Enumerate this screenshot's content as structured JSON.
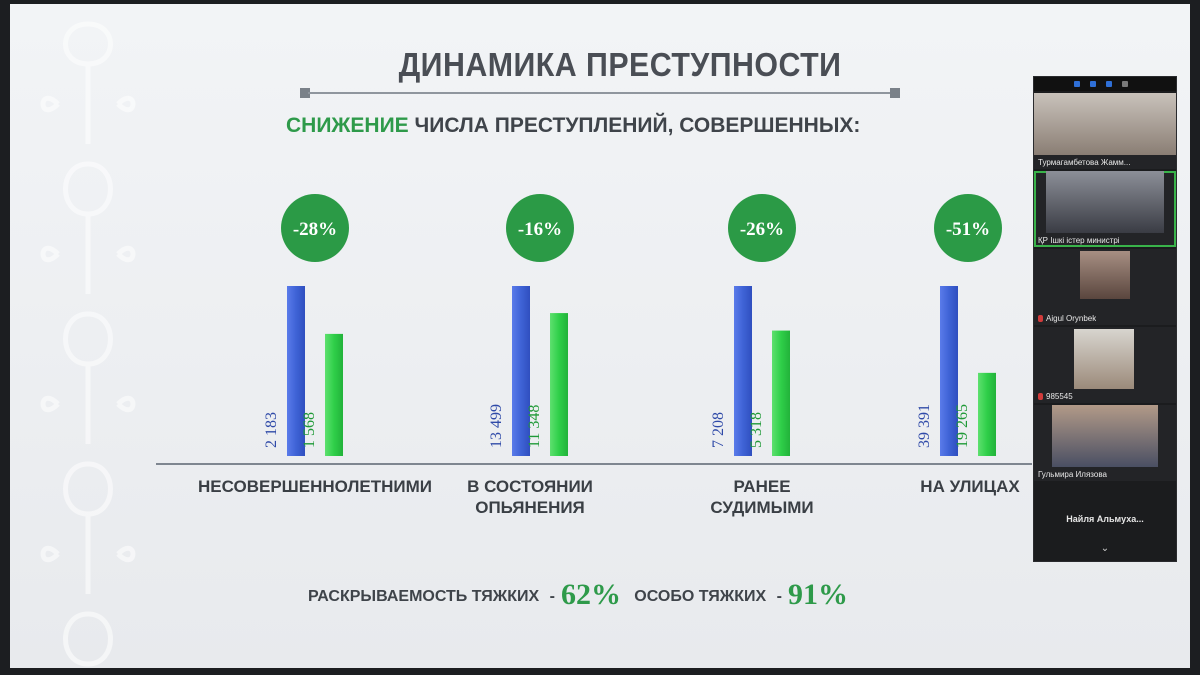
{
  "slide": {
    "title": "ДИНАМИКА ПРЕСТУПНОСТИ",
    "subtitle_accent": "СНИЖЕНИЕ",
    "subtitle_rest": " ЧИСЛА ПРЕСТУПЛЕНИЙ, СОВЕРШЕННЫХ:",
    "footer": {
      "label1": "РАСКРЫВАЕМОСТЬ ТЯЖКИХ",
      "value1": "62%",
      "label2": "ОСОБО ТЯЖКИХ",
      "value2": "91%",
      "dash": "-"
    },
    "colors": {
      "blue": "#3f63d6",
      "green": "#2fcf49",
      "accent_green": "#2e9a4a",
      "badge_green": "#2b9a46"
    }
  },
  "chart_data": {
    "type": "bar",
    "categories": [
      "НЕСОВЕРШЕННОЛЕТНИМИ",
      "В СОСТОЯНИИ ОПЬЯНЕНИЯ",
      "РАНЕЕ СУДИМЫМИ",
      "НА УЛИЦАХ"
    ],
    "category_lines": [
      [
        "НЕСОВЕРШЕННОЛЕТНИМИ"
      ],
      [
        "В СОСТОЯНИИ",
        "ОПЬЯНЕНИЯ"
      ],
      [
        "РАНЕЕ",
        "СУДИМЫМИ"
      ],
      [
        "НА УЛИЦАХ"
      ]
    ],
    "series": [
      {
        "values": [
          2183,
          13499,
          7208,
          39391
        ],
        "labels": [
          "2 183",
          "13 499",
          "7 208",
          "39 391"
        ],
        "color": "#3f63d6"
      },
      {
        "values": [
          1568,
          11348,
          5318,
          19265
        ],
        "labels": [
          "1 568",
          "11 348",
          "5 318",
          "19 265"
        ],
        "color": "#2fcf49"
      }
    ],
    "changes": [
      "-28%",
      "-16%",
      "-26%",
      "-51%"
    ],
    "bar_scale": "each category normalized to its first bar"
  },
  "participants": {
    "tiles": [
      {
        "name": "Турмагамбетова Жамм...",
        "muted": false,
        "active": false
      },
      {
        "name": "ҚР Ішкі істер министрі",
        "muted": false,
        "active": true
      },
      {
        "name": "Aigul Orynbek",
        "muted": true,
        "active": false
      },
      {
        "name": "985545",
        "muted": true,
        "active": false
      },
      {
        "name": "Гульмира Илязова",
        "muted": false,
        "active": false
      }
    ],
    "more_label": "Найля Альмуха...",
    "chevron": "⌄"
  }
}
